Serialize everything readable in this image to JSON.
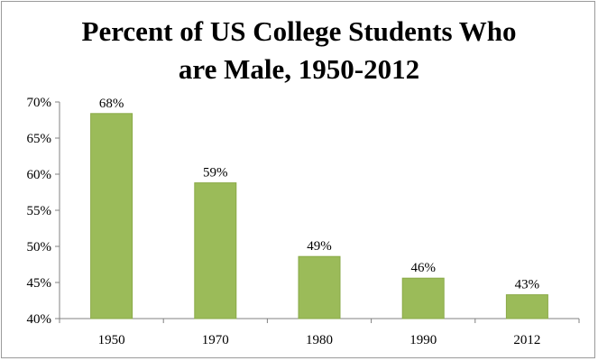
{
  "chart_data": {
    "type": "bar",
    "title_lines": [
      "Percent of US College Students Who",
      "are Male, 1950-2012"
    ],
    "categories": [
      "1950",
      "1970",
      "1980",
      "1990",
      "2012"
    ],
    "values": [
      68.4,
      58.8,
      48.6,
      45.6,
      43.3
    ],
    "data_labels": [
      "68%",
      "59%",
      "49%",
      "46%",
      "43%"
    ],
    "y_ticks": [
      "70%",
      "65%",
      "60%",
      "55%",
      "50%",
      "45%",
      "40%"
    ],
    "ylim": [
      40,
      70
    ],
    "ytick_step": 5,
    "grid": false,
    "bar_color": "#9bbb59",
    "bar_edge_color": "#8aaa48"
  }
}
